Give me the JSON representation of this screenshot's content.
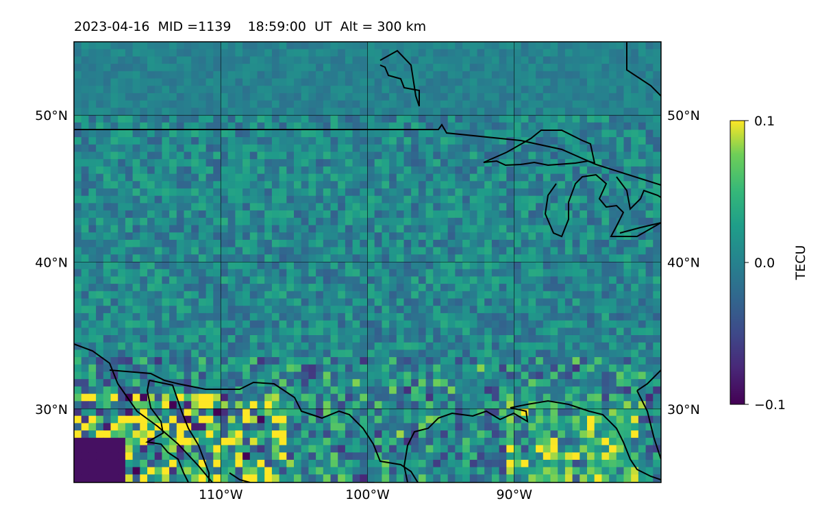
{
  "title": "2023-04-16  MID =1139    18:59:00  UT  Alt = 300 km",
  "map": {
    "lon_range": [
      -120,
      -80
    ],
    "lat_range": [
      25,
      55
    ],
    "lat_ticks": [
      {
        "value": 50,
        "label": "50°N"
      },
      {
        "value": 40,
        "label": "40°N"
      },
      {
        "value": 30,
        "label": "30°N"
      }
    ],
    "lon_ticks": [
      {
        "value": -110,
        "label": "110°W"
      },
      {
        "value": -100,
        "label": "100°W"
      },
      {
        "value": -90,
        "label": "90°W"
      }
    ],
    "gridlines": true,
    "colormap": "viridis",
    "colors": {
      "low": "#440154",
      "mid": "#21918c",
      "high": "#fde725",
      "coast": "#000000"
    }
  },
  "colorbar": {
    "label": "TECU",
    "min": -0.1,
    "max": 0.1,
    "ticks": [
      {
        "value": 0.1,
        "label": "0.1"
      },
      {
        "value": 0.0,
        "label": "0.0"
      },
      {
        "value": -0.1,
        "label": "−0.1"
      }
    ]
  }
}
